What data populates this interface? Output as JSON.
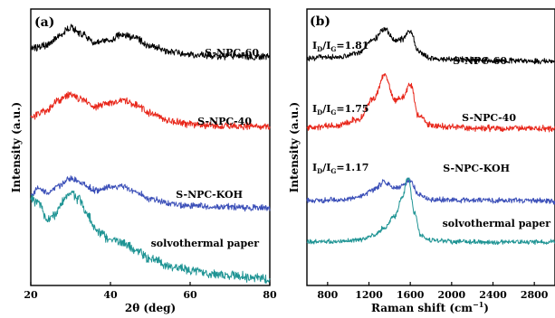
{
  "chart_data": [
    {
      "panel_label": "(a)",
      "type": "line",
      "xlabel": "2θ (deg)",
      "ylabel": "Intensity (a.u.)",
      "xlim": [
        20,
        80
      ],
      "xticks": [
        "20",
        "40",
        "60",
        "80"
      ],
      "yticks": "none",
      "legend": "inline labels at right",
      "series": [
        {
          "name": "S-NPC-60",
          "color": "#000000",
          "noise": 0.045,
          "x": [
            20,
            24,
            27,
            30,
            33,
            36,
            40,
            43,
            46,
            50,
            55,
            60,
            65,
            70,
            75,
            80
          ],
          "y": [
            3.78,
            3.82,
            3.98,
            4.1,
            4.0,
            3.86,
            3.92,
            4.0,
            3.94,
            3.82,
            3.72,
            3.67,
            3.66,
            3.65,
            3.64,
            3.64
          ]
        },
        {
          "name": "S-NPC-40",
          "color": "#e8271b",
          "noise": 0.045,
          "x": [
            20,
            24,
            27,
            30,
            33,
            36,
            40,
            43,
            46,
            50,
            55,
            60,
            65,
            70,
            75,
            80
          ],
          "y": [
            2.68,
            2.78,
            2.95,
            3.04,
            2.96,
            2.84,
            2.9,
            2.95,
            2.88,
            2.74,
            2.62,
            2.57,
            2.55,
            2.54,
            2.53,
            2.52
          ]
        },
        {
          "name": "S-NPC-KOH",
          "color": "#3b4fb8",
          "noise": 0.04,
          "x": [
            20,
            22,
            24,
            27,
            30,
            33,
            36,
            40,
            43,
            46,
            50,
            55,
            60,
            65,
            70,
            75,
            80
          ],
          "y": [
            1.45,
            1.55,
            1.48,
            1.58,
            1.7,
            1.63,
            1.52,
            1.56,
            1.58,
            1.5,
            1.38,
            1.3,
            1.27,
            1.26,
            1.25,
            1.24,
            1.24
          ]
        },
        {
          "name": "solvothermal paper",
          "color": "#1f9494",
          "noise": 0.06,
          "x": [
            20,
            22,
            24,
            26,
            28,
            30,
            32,
            34,
            37,
            40,
            43,
            46,
            50,
            55,
            60,
            65,
            70,
            75,
            80
          ],
          "y": [
            1.38,
            1.3,
            1.05,
            1.12,
            1.35,
            1.48,
            1.38,
            1.12,
            0.85,
            0.72,
            0.68,
            0.58,
            0.42,
            0.3,
            0.24,
            0.19,
            0.16,
            0.13,
            0.1
          ]
        }
      ]
    },
    {
      "panel_label": "(b)",
      "type": "line",
      "xlabel": "Raman shift  (cm",
      "xlabel_sup": "−1",
      "xlabel_end": ")",
      "ylabel": "Intensity (a.u.)",
      "xlim": [
        600,
        3000
      ],
      "xticks": [
        "800",
        "1200",
        "1600",
        "2000",
        "2400",
        "2800"
      ],
      "yticks": "none",
      "legend": "inline labels at right",
      "annotations": [
        {
          "id": "ratio-60",
          "prefix": "I",
          "sub1": "D",
          "mid": "/I",
          "sub2": "G",
          "suffix": "=1.81"
        },
        {
          "id": "ratio-40",
          "prefix": "I",
          "sub1": "D",
          "mid": "/I",
          "sub2": "G",
          "suffix": "=1.75"
        },
        {
          "id": "ratio-koh",
          "prefix": "I",
          "sub1": "D",
          "mid": "/I",
          "sub2": "G",
          "suffix": "=1.17"
        }
      ],
      "series": [
        {
          "name": "S-NPC-60",
          "color": "#000000",
          "noise": 0.035,
          "x": [
            600,
            900,
            1100,
            1250,
            1350,
            1450,
            1520,
            1600,
            1680,
            1800,
            2000,
            2400,
            2800,
            3000
          ],
          "y": [
            3.62,
            3.64,
            3.7,
            3.92,
            4.08,
            3.9,
            3.92,
            4.05,
            3.72,
            3.62,
            3.6,
            3.58,
            3.57,
            3.57
          ]
        },
        {
          "name": "S-NPC-40",
          "color": "#e8271b",
          "noise": 0.04,
          "x": [
            600,
            900,
            1100,
            1250,
            1350,
            1450,
            1520,
            1600,
            1680,
            1800,
            2000,
            2400,
            2800,
            3000
          ],
          "y": [
            2.52,
            2.55,
            2.65,
            2.98,
            3.35,
            2.95,
            3.0,
            3.2,
            2.7,
            2.55,
            2.52,
            2.5,
            2.5,
            2.49
          ]
        },
        {
          "name": "S-NPC-KOH",
          "color": "#3b4fb8",
          "noise": 0.035,
          "x": [
            600,
            900,
            1100,
            1250,
            1350,
            1450,
            1520,
            1600,
            1680,
            1800,
            2000,
            2400,
            2800,
            3000
          ],
          "y": [
            1.35,
            1.36,
            1.4,
            1.52,
            1.65,
            1.55,
            1.58,
            1.68,
            1.45,
            1.37,
            1.36,
            1.35,
            1.35,
            1.34
          ]
        },
        {
          "name": "solvothermal paper",
          "color": "#1f9494",
          "noise": 0.03,
          "x": [
            600,
            900,
            1100,
            1250,
            1350,
            1450,
            1520,
            1580,
            1640,
            1700,
            1800,
            2000,
            2400,
            2800,
            3000
          ],
          "y": [
            0.7,
            0.7,
            0.72,
            0.8,
            0.92,
            1.1,
            1.4,
            1.72,
            1.15,
            0.8,
            0.72,
            0.7,
            0.69,
            0.69,
            0.69
          ]
        }
      ]
    }
  ]
}
